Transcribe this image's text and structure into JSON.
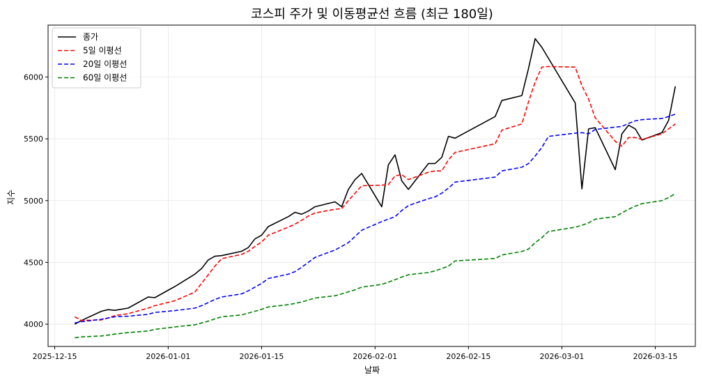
{
  "chart_data": {
    "type": "line",
    "title": "코스피 주가 및 이동평균선 흐름 (최근 180일)",
    "xlabel": "날짜",
    "ylabel": "지수",
    "x_ticks": [
      "2025-12-15",
      "2026-01-01",
      "2026-01-15",
      "2026-02-01",
      "2026-02-15",
      "2026-03-01",
      "2026-03-15"
    ],
    "y_ticks": [
      4000,
      4500,
      5000,
      5500,
      6000
    ],
    "ylim": [
      3820,
      6420
    ],
    "xlim": [
      "2025-12-14",
      "2026-03-21"
    ],
    "grid": true,
    "legend_position": "top-left",
    "series": [
      {
        "name": "종가",
        "color": "#000000",
        "dash": "solid",
        "x": [
          "2025-12-18",
          "2025-12-19",
          "2025-12-22",
          "2025-12-23",
          "2025-12-24",
          "2025-12-26",
          "2025-12-29",
          "2025-12-30",
          "2026-01-02",
          "2026-01-05",
          "2026-01-06",
          "2026-01-07",
          "2026-01-08",
          "2026-01-09",
          "2026-01-12",
          "2026-01-13",
          "2026-01-14",
          "2026-01-15",
          "2026-01-16",
          "2026-01-19",
          "2026-01-20",
          "2026-01-21",
          "2026-01-22",
          "2026-01-23",
          "2026-01-26",
          "2026-01-27",
          "2026-01-28",
          "2026-01-29",
          "2026-01-30",
          "2026-02-02",
          "2026-02-03",
          "2026-02-04",
          "2026-02-05",
          "2026-02-06",
          "2026-02-09",
          "2026-02-10",
          "2026-02-11",
          "2026-02-12",
          "2026-02-13",
          "2026-02-19",
          "2026-02-20",
          "2026-02-23",
          "2026-02-24",
          "2026-02-25",
          "2026-02-26",
          "2026-02-27",
          "2026-03-03",
          "2026-03-04",
          "2026-03-05",
          "2026-03-06",
          "2026-03-09",
          "2026-03-10",
          "2026-03-11",
          "2026-03-12",
          "2026-03-13",
          "2026-03-16",
          "2026-03-17",
          "2026-03-18"
        ],
        "values": [
          4000,
          4030,
          4105,
          4118,
          4112,
          4130,
          4220,
          4215,
          4305,
          4405,
          4450,
          4520,
          4550,
          4555,
          4590,
          4620,
          4690,
          4720,
          4790,
          4870,
          4905,
          4890,
          4915,
          4950,
          4990,
          4950,
          5090,
          5170,
          5220,
          4950,
          5290,
          5370,
          5160,
          5090,
          5300,
          5300,
          5350,
          5520,
          5505,
          5680,
          5810,
          5850,
          6070,
          6310,
          6240,
          6150,
          5790,
          5095,
          5580,
          5590,
          5250,
          5540,
          5610,
          5580,
          5490,
          5550,
          5650,
          5925
        ]
      },
      {
        "name": "5일 이평선",
        "color": "#ff0000",
        "dash": "dashed",
        "x": [
          "2025-12-18",
          "2025-12-19",
          "2025-12-22",
          "2025-12-23",
          "2025-12-24",
          "2025-12-26",
          "2025-12-29",
          "2025-12-30",
          "2026-01-02",
          "2026-01-05",
          "2026-01-06",
          "2026-01-07",
          "2026-01-08",
          "2026-01-09",
          "2026-01-12",
          "2026-01-13",
          "2026-01-14",
          "2026-01-15",
          "2026-01-16",
          "2026-01-19",
          "2026-01-20",
          "2026-01-21",
          "2026-01-22",
          "2026-01-23",
          "2026-01-26",
          "2026-01-27",
          "2026-01-28",
          "2026-01-29",
          "2026-01-30",
          "2026-02-02",
          "2026-02-03",
          "2026-02-04",
          "2026-02-05",
          "2026-02-06",
          "2026-02-09",
          "2026-02-10",
          "2026-02-11",
          "2026-02-12",
          "2026-02-13",
          "2026-02-19",
          "2026-02-20",
          "2026-02-23",
          "2026-02-24",
          "2026-02-25",
          "2026-02-26",
          "2026-02-27",
          "2026-03-03",
          "2026-03-04",
          "2026-03-05",
          "2026-03-06",
          "2026-03-09",
          "2026-03-10",
          "2026-03-11",
          "2026-03-12",
          "2026-03-13",
          "2026-03-16",
          "2026-03-17",
          "2026-03-18"
        ],
        "values": [
          4060,
          4030,
          4035,
          4050,
          4070,
          4085,
          4130,
          4150,
          4190,
          4260,
          4330,
          4400,
          4470,
          4530,
          4565,
          4590,
          4630,
          4665,
          4720,
          4785,
          4810,
          4840,
          4875,
          4900,
          4930,
          4935,
          5000,
          5060,
          5120,
          5125,
          5130,
          5200,
          5210,
          5170,
          5230,
          5240,
          5240,
          5330,
          5390,
          5460,
          5570,
          5620,
          5800,
          5960,
          6080,
          6085,
          6080,
          5930,
          5820,
          5670,
          5480,
          5440,
          5510,
          5510,
          5495,
          5540,
          5580,
          5620
        ]
      },
      {
        "name": "20일 이평선",
        "color": "#0000ff",
        "dash": "dashed",
        "x": [
          "2025-12-18",
          "2025-12-19",
          "2025-12-22",
          "2025-12-23",
          "2025-12-24",
          "2025-12-26",
          "2025-12-29",
          "2025-12-30",
          "2026-01-02",
          "2026-01-05",
          "2026-01-06",
          "2026-01-07",
          "2026-01-08",
          "2026-01-09",
          "2026-01-12",
          "2026-01-13",
          "2026-01-14",
          "2026-01-15",
          "2026-01-16",
          "2026-01-19",
          "2026-01-20",
          "2026-01-21",
          "2026-01-22",
          "2026-01-23",
          "2026-01-26",
          "2026-01-27",
          "2026-01-28",
          "2026-01-29",
          "2026-01-30",
          "2026-02-02",
          "2026-02-03",
          "2026-02-04",
          "2026-02-05",
          "2026-02-06",
          "2026-02-09",
          "2026-02-10",
          "2026-02-11",
          "2026-02-12",
          "2026-02-13",
          "2026-02-19",
          "2026-02-20",
          "2026-02-23",
          "2026-02-24",
          "2026-02-25",
          "2026-02-26",
          "2026-02-27",
          "2026-03-03",
          "2026-03-04",
          "2026-03-05",
          "2026-03-06",
          "2026-03-09",
          "2026-03-10",
          "2026-03-11",
          "2026-03-12",
          "2026-03-13",
          "2026-03-16",
          "2026-03-17",
          "2026-03-18"
        ],
        "values": [
          4010,
          4020,
          4040,
          4050,
          4060,
          4065,
          4080,
          4095,
          4110,
          4130,
          4150,
          4175,
          4200,
          4220,
          4245,
          4270,
          4300,
          4330,
          4370,
          4405,
          4425,
          4460,
          4500,
          4540,
          4600,
          4630,
          4660,
          4710,
          4760,
          4830,
          4850,
          4870,
          4920,
          4960,
          5015,
          5030,
          5060,
          5100,
          5150,
          5190,
          5240,
          5270,
          5300,
          5360,
          5430,
          5520,
          5545,
          5550,
          5540,
          5575,
          5595,
          5600,
          5625,
          5645,
          5655,
          5665,
          5680,
          5700
        ]
      },
      {
        "name": "60일 이평선",
        "color": "#008000",
        "dash": "dashed",
        "x": [
          "2025-12-18",
          "2025-12-19",
          "2025-12-22",
          "2025-12-23",
          "2025-12-24",
          "2025-12-26",
          "2025-12-29",
          "2025-12-30",
          "2026-01-02",
          "2026-01-05",
          "2026-01-06",
          "2026-01-07",
          "2026-01-08",
          "2026-01-09",
          "2026-01-12",
          "2026-01-13",
          "2026-01-14",
          "2026-01-15",
          "2026-01-16",
          "2026-01-19",
          "2026-01-20",
          "2026-01-21",
          "2026-01-22",
          "2026-01-23",
          "2026-01-26",
          "2026-01-27",
          "2026-01-28",
          "2026-01-29",
          "2026-01-30",
          "2026-02-02",
          "2026-02-03",
          "2026-02-04",
          "2026-02-05",
          "2026-02-06",
          "2026-02-09",
          "2026-02-10",
          "2026-02-11",
          "2026-02-12",
          "2026-02-13",
          "2026-02-19",
          "2026-02-20",
          "2026-02-23",
          "2026-02-24",
          "2026-02-25",
          "2026-02-26",
          "2026-02-27",
          "2026-03-03",
          "2026-03-04",
          "2026-03-05",
          "2026-03-06",
          "2026-03-09",
          "2026-03-10",
          "2026-03-11",
          "2026-03-12",
          "2026-03-13",
          "2026-03-16",
          "2026-03-17",
          "2026-03-18"
        ],
        "values": [
          3890,
          3897,
          3905,
          3912,
          3920,
          3932,
          3945,
          3958,
          3978,
          3995,
          4010,
          4025,
          4043,
          4060,
          4075,
          4090,
          4105,
          4120,
          4140,
          4158,
          4168,
          4180,
          4195,
          4212,
          4230,
          4245,
          4262,
          4278,
          4300,
          4322,
          4340,
          4360,
          4382,
          4400,
          4418,
          4432,
          4450,
          4470,
          4512,
          4532,
          4560,
          4588,
          4608,
          4660,
          4700,
          4750,
          4785,
          4800,
          4820,
          4850,
          4870,
          4900,
          4930,
          4955,
          4975,
          5000,
          5025,
          5055
        ]
      }
    ]
  }
}
